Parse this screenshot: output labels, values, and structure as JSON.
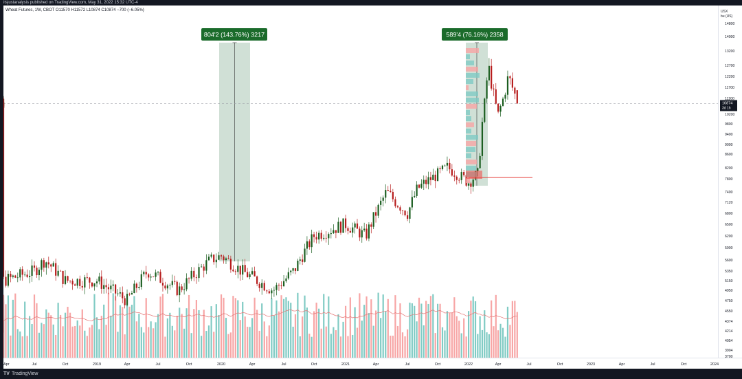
{
  "header": {
    "text": "itsjustanalysis published on TradingView.com, May 31, 2022 15:32 UTC-4"
  },
  "legend": {
    "text": "Wheat Futures, 1W, CBOT  O11570 H11572 L10874 C10874 −700 (−6.05%)"
  },
  "price_axis": {
    "units_line1": "USX",
    "units_line2": "bu (US)",
    "ticks": [
      "14800",
      "14000",
      "13200",
      "12700",
      "12200",
      "11700",
      "11200",
      "10200",
      "9800",
      "9400",
      "9000",
      "8600",
      "8200",
      "7800",
      "7400",
      "7120",
      "6800",
      "6500",
      "6200",
      "5900",
      "5600",
      "5350",
      "5150",
      "4950",
      "4750",
      "4550",
      "4374",
      "4214",
      "4054",
      "3904",
      "3700"
    ],
    "current_price": "10874",
    "countdown": "3d 1h"
  },
  "time_axis": {
    "labels": [
      "Apr",
      "Jul",
      "Oct",
      "2019",
      "Apr",
      "Jul",
      "Oct",
      "2020",
      "Apr",
      "Jul",
      "Oct",
      "2021",
      "Apr",
      "Jul",
      "Oct",
      "2022",
      "Apr",
      "Jul",
      "Oct",
      "2023",
      "Apr",
      "Jul",
      "Oct",
      "2024"
    ]
  },
  "measures": [
    {
      "label": "804'2 (143.76%) 3217"
    },
    {
      "label": "589'4 (76.16%) 2358"
    }
  ],
  "footer": {
    "logo": "TV",
    "brand": "TradingView"
  },
  "chart_data": {
    "type": "candlestick",
    "symbol": "Wheat Futures",
    "interval": "1W",
    "exchange": "CBOT",
    "last": {
      "open": 11570,
      "high": 11572,
      "low": 10874,
      "close": 10874,
      "change": -700,
      "change_pct": -6.05
    },
    "y_range": [
      3700,
      14800
    ],
    "x_range": [
      "2018-04",
      "2024-01"
    ],
    "approx_close_path": [
      [
        "2018-04",
        5150
      ],
      [
        "2018-07",
        5350
      ],
      [
        "2018-08",
        5600
      ],
      [
        "2018-10",
        5150
      ],
      [
        "2019-01",
        5150
      ],
      [
        "2019-04",
        4750
      ],
      [
        "2019-06",
        5350
      ],
      [
        "2019-09",
        4950
      ],
      [
        "2019-12",
        5600
      ],
      [
        "2020-01",
        5700
      ],
      [
        "2020-03",
        5350
      ],
      [
        "2020-06",
        4950
      ],
      [
        "2020-08",
        5350
      ],
      [
        "2020-10",
        6200
      ],
      [
        "2021-01",
        6500
      ],
      [
        "2021-03",
        6200
      ],
      [
        "2021-05",
        7400
      ],
      [
        "2021-07",
        6800
      ],
      [
        "2021-08",
        7500
      ],
      [
        "2021-11",
        8200
      ],
      [
        "2022-01",
        7700
      ],
      [
        "2022-02",
        8000
      ],
      [
        "2022-03",
        12700
      ],
      [
        "2022-04",
        10200
      ],
      [
        "2022-05",
        12200
      ],
      [
        "2022-05-31",
        10874
      ]
    ],
    "measure_ranges": [
      {
        "label": "804'2 (143.76%) 3217",
        "from": "2019-12",
        "to": "2020-02"
      },
      {
        "label": "589'4 (76.16%) 2358",
        "from": "2022-01",
        "to": "2022-02"
      }
    ],
    "horizontal_line": {
      "from": "2022-01",
      "to": "2022-06",
      "color": "#e53935"
    },
    "volume_moving_average": true,
    "colors": {
      "up": "#26a69a",
      "down": "#ef5350",
      "up_candle": "#1b5e20",
      "down_candle": "#b71c1c",
      "volume_up": "#80cbc4",
      "volume_down": "#f7a5a5",
      "measure_fill": "#b7d0c0",
      "measure_label_bg": "#1b6b2b"
    }
  }
}
